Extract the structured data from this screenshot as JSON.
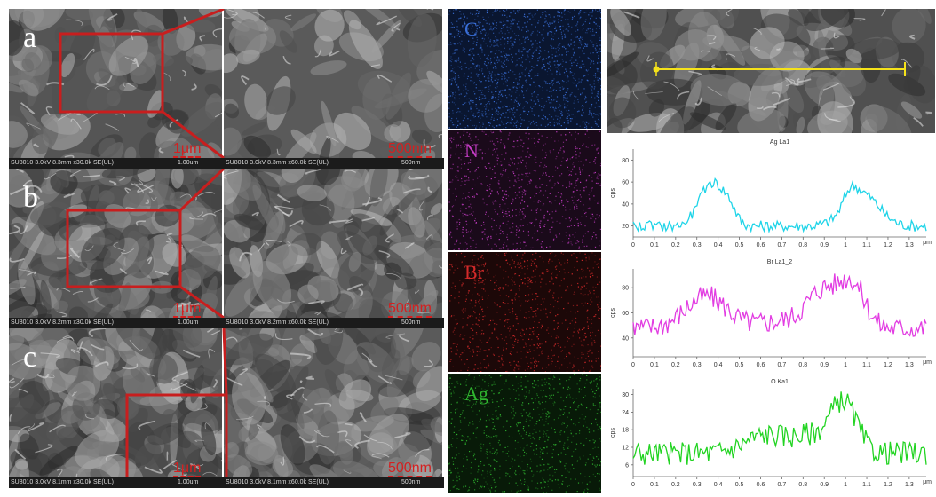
{
  "sem_panels": [
    {
      "label": "a",
      "info_left": "SU8010 3.0kV 8.3mm x30.0k SE(UL)",
      "scale_left": "1μm",
      "scale_left_small": "1.00um",
      "info_right": "SU8010 3.0kV 8.3mm x60.0k SE(UL)",
      "scale_right": "500nm",
      "scale_right_small": "500nm"
    },
    {
      "label": "b",
      "info_left": "SU8010 3.0kV 8.2mm x30.0k SE(UL)",
      "scale_left": "1μm",
      "scale_left_small": "1.00um",
      "info_right": "SU8010 3.0kV 8.2mm x60.0k SE(UL)",
      "scale_right": "500nm",
      "scale_right_small": "500nm"
    },
    {
      "label": "c",
      "info_left": "SU8010 3.0kV 8.1mm x30.0k SE(UL)",
      "scale_left": "1μm",
      "scale_left_small": "1.00um",
      "info_right": "SU8010 3.0kV 8.1mm x60.0k SE(UL)",
      "scale_right": "500nm",
      "scale_right_small": "500nm"
    }
  ],
  "eds_maps": [
    {
      "element": "C",
      "color": "#3a6fd8",
      "bg": "#0a1630"
    },
    {
      "element": "N",
      "color": "#c43cc4",
      "bg": "#1a0a1a"
    },
    {
      "element": "Br",
      "color": "#d42a2a",
      "bg": "#1c0808"
    },
    {
      "element": "Ag",
      "color": "#2fb62f",
      "bg": "#081a08"
    }
  ],
  "line_scans": [
    {
      "title": "Ag La1",
      "color": "#1fd4e8",
      "ylabel": "cps",
      "xunit": "μm",
      "yticks": [
        20,
        40,
        60,
        80
      ],
      "ymin": 10,
      "ymax": 90
    },
    {
      "title": "Br La1_2",
      "color": "#e23ce2",
      "ylabel": "cps",
      "xunit": "μm",
      "yticks": [
        40,
        60,
        80
      ],
      "ymin": 25,
      "ymax": 95
    },
    {
      "title": "O Ka1",
      "color": "#22d422",
      "ylabel": "cps",
      "xunit": "μm",
      "yticks": [
        6,
        12,
        18,
        24,
        30
      ],
      "ymin": 2,
      "ymax": 32
    }
  ],
  "x_ticks": [
    "0",
    "0.1",
    "0.2",
    "0.3",
    "0.4",
    "0.5",
    "0.6",
    "0.7",
    "0.8",
    "0.9",
    "1",
    "1.1",
    "1.2",
    "1.3"
  ],
  "colors": {
    "zoom_box": "#c81e1e",
    "scan_line": "#f5e21a"
  }
}
